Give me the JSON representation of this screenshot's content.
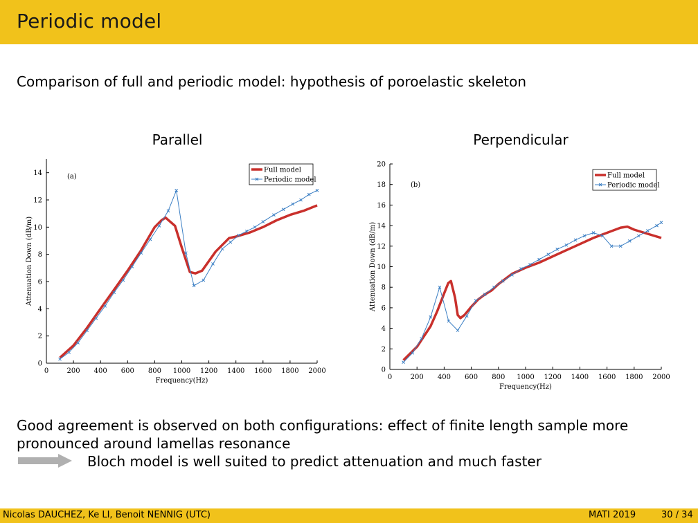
{
  "header": {
    "title": "Periodic model"
  },
  "subtitle": "Comparison of full and periodic model: hypothesis of poroelastic skeleton",
  "charts": {
    "left_title": "Parallel",
    "right_title": "Perpendicular"
  },
  "body_text": {
    "line1": "Good agreement is observed on both configurations: effect of finite length sample more",
    "line2": "pronounced around lamellas resonance",
    "line3": "Bloch model is well suited to predict attenuation and much faster"
  },
  "footer": {
    "authors": "Nicolas DAUCHEZ, Ke LI, Benoit NENNIG (UTC)",
    "conference": "MATI 2019",
    "page": "30 / 34"
  },
  "colors": {
    "accent": "#f1c21b",
    "full_model": "#c9302c",
    "periodic_model": "#3b7fc4"
  },
  "chart_data": [
    {
      "type": "line",
      "title": "Parallel",
      "panel_label": "(a)",
      "xlabel": "Frequency(Hz)",
      "ylabel": "Attenuation Down (dB/m)",
      "xlim": [
        0,
        2000
      ],
      "ylim": [
        0,
        15
      ],
      "xticks": [
        0,
        200,
        400,
        600,
        800,
        1000,
        1200,
        1400,
        1600,
        1800,
        2000
      ],
      "yticks": [
        0,
        2,
        4,
        6,
        8,
        10,
        12,
        14
      ],
      "legend_position": "top-right",
      "series": [
        {
          "name": "Full model",
          "x": [
            100,
            200,
            300,
            400,
            500,
            600,
            700,
            800,
            850,
            880,
            950,
            1000,
            1060,
            1100,
            1150,
            1250,
            1350,
            1400,
            1500,
            1600,
            1700,
            1800,
            1900,
            2000
          ],
          "values": [
            0.4,
            1.3,
            2.6,
            4.0,
            5.4,
            6.8,
            8.3,
            10.0,
            10.5,
            10.7,
            10.1,
            8.5,
            6.7,
            6.6,
            6.8,
            8.2,
            9.2,
            9.3,
            9.6,
            10.0,
            10.5,
            10.9,
            11.2,
            11.6
          ]
        },
        {
          "name": "Periodic model",
          "x": [
            100,
            167,
            233,
            300,
            367,
            433,
            500,
            567,
            633,
            700,
            767,
            833,
            900,
            960,
            1030,
            1090,
            1160,
            1230,
            1300,
            1360,
            1420,
            1480,
            1540,
            1600,
            1680,
            1750,
            1820,
            1880,
            1940,
            2000
          ],
          "values": [
            0.3,
            0.8,
            1.5,
            2.4,
            3.3,
            4.2,
            5.2,
            6.1,
            7.1,
            8.1,
            9.1,
            10.1,
            11.2,
            12.7,
            8.1,
            5.7,
            6.1,
            7.3,
            8.4,
            8.9,
            9.4,
            9.7,
            10.0,
            10.4,
            10.9,
            11.3,
            11.7,
            12.0,
            12.4,
            12.7
          ]
        }
      ]
    },
    {
      "type": "line",
      "title": "Perpendicular",
      "panel_label": "(b)",
      "xlabel": "Frequency(Hz)",
      "ylabel": "Attenuation Down (dB/m)",
      "xlim": [
        0,
        2000
      ],
      "ylim": [
        0,
        20
      ],
      "xticks": [
        0,
        200,
        400,
        600,
        800,
        1000,
        1200,
        1400,
        1600,
        1800,
        2000
      ],
      "yticks": [
        0,
        2,
        4,
        6,
        8,
        10,
        12,
        14,
        16,
        18,
        20
      ],
      "legend_position": "top-right",
      "series": [
        {
          "name": "Full model",
          "x": [
            100,
            200,
            300,
            350,
            400,
            430,
            450,
            480,
            500,
            520,
            550,
            600,
            650,
            700,
            750,
            800,
            900,
            1000,
            1100,
            1200,
            1300,
            1400,
            1500,
            1600,
            1700,
            1750,
            1800,
            1900,
            2000
          ],
          "values": [
            0.9,
            2.2,
            4.2,
            5.7,
            7.4,
            8.4,
            8.6,
            7.0,
            5.3,
            5.0,
            5.3,
            6.1,
            6.8,
            7.3,
            7.7,
            8.3,
            9.3,
            9.9,
            10.4,
            11.0,
            11.6,
            12.2,
            12.8,
            13.3,
            13.8,
            13.9,
            13.6,
            13.2,
            12.8
          ]
        },
        {
          "name": "Periodic model",
          "x": [
            100,
            167,
            233,
            300,
            367,
            433,
            500,
            567,
            633,
            700,
            767,
            833,
            900,
            967,
            1033,
            1100,
            1167,
            1233,
            1300,
            1367,
            1433,
            1500,
            1567,
            1633,
            1700,
            1767,
            1833,
            1900,
            1967,
            2000
          ],
          "values": [
            0.7,
            1.6,
            3.0,
            5.1,
            8.0,
            4.7,
            3.8,
            5.2,
            6.7,
            7.3,
            8.0,
            8.6,
            9.2,
            9.8,
            10.2,
            10.7,
            11.2,
            11.7,
            12.1,
            12.6,
            13.0,
            13.3,
            13.0,
            12.0,
            12.0,
            12.5,
            13.0,
            13.5,
            14.0,
            14.3
          ]
        }
      ]
    }
  ]
}
